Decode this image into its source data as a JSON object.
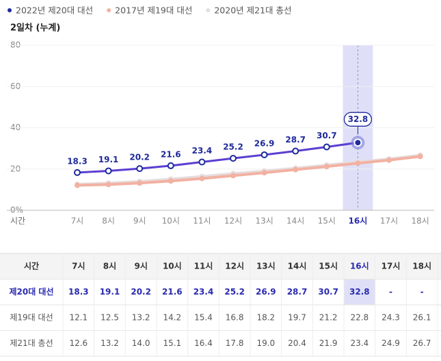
{
  "chart_data": {
    "type": "line",
    "subtitle": "2일차 (누계)",
    "x_label": "시간",
    "categories": [
      "7시",
      "8시",
      "9시",
      "10시",
      "11시",
      "12시",
      "13시",
      "14시",
      "15시",
      "16시",
      "17시",
      "18시"
    ],
    "series": [
      {
        "name": "2022년 제20대 대선",
        "color": "#5b3fd1",
        "values": [
          18.3,
          19.1,
          20.2,
          21.6,
          23.4,
          25.2,
          26.9,
          28.7,
          30.7,
          32.8,
          null,
          null
        ]
      },
      {
        "name": "2017년 제19대 대선",
        "color": "#f2b1a2",
        "values": [
          12.1,
          12.5,
          13.2,
          14.2,
          15.4,
          16.8,
          18.2,
          19.7,
          21.2,
          22.8,
          24.3,
          26.1
        ]
      },
      {
        "name": "2020년 제21대 총선",
        "color": "#e6dddd",
        "values": [
          12.6,
          13.2,
          14.0,
          15.1,
          16.4,
          17.8,
          19.0,
          20.4,
          21.9,
          23.4,
          24.9,
          26.7
        ],
        "value_labels": [
          "12.6",
          "13.2",
          "14.0",
          "15.1",
          "16.4",
          "17.8",
          "19.0",
          "20.4",
          "21.9",
          "23.4",
          "24.9",
          "26.7"
        ]
      }
    ],
    "ylim": [
      0,
      80
    ],
    "yticks": [
      {
        "value": 0,
        "label": "0%"
      },
      20,
      40,
      60,
      80
    ],
    "grid": true,
    "highlight_index": 9
  },
  "table": {
    "header": "시간",
    "row_labels": [
      "제20대 대선",
      "제19대 대선",
      "제21대 총선"
    ],
    "empty": "-"
  }
}
